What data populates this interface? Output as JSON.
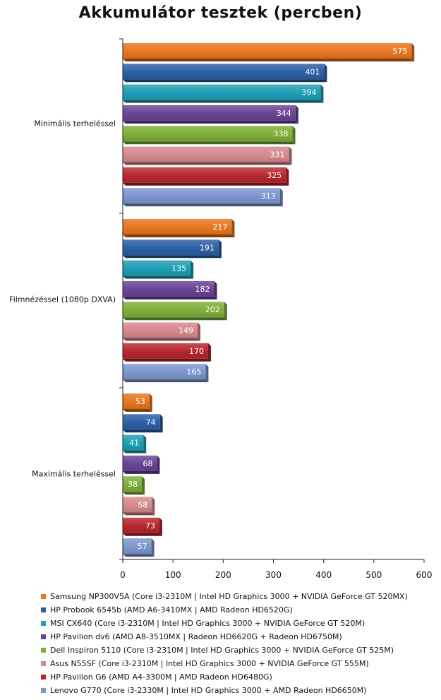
{
  "chart_data": {
    "type": "bar",
    "orientation": "horizontal",
    "title": "Akkumulátor tesztek (percben)",
    "categories": [
      "Minimális terheléssel",
      "Filmnézéssel (1080p DXVA)",
      "Maximális terheléssel"
    ],
    "xlim": [
      0,
      600
    ],
    "xticks": [
      0,
      100,
      200,
      300,
      400,
      500,
      600
    ],
    "grid": false,
    "legend_position": "bottom",
    "series": [
      {
        "name": "Samsung NP300V5A (Core i3-2310M | Intel HD Graphics 3000 + NVIDIA GeForce GT 520MX)",
        "color": "#e8761f",
        "values": [
          575,
          217,
          53
        ]
      },
      {
        "name": "HP Probook 6545b (AMD A6-3410MX | AMD Radeon HD6520G)",
        "color": "#2d5fa6",
        "values": [
          401,
          191,
          74
        ]
      },
      {
        "name": "MSI CX640 (Core i3-2310M | Intel HD Graphics 3000 + NVIDIA GeForce GT 520M)",
        "color": "#1e9fb5",
        "values": [
          394,
          135,
          41
        ]
      },
      {
        "name": "HP Pavilion dv6 (AMD A8-3510MX | Radeon HD6620G + Radeon HD6750M)",
        "color": "#6a4496",
        "values": [
          344,
          182,
          68
        ]
      },
      {
        "name": "Dell Inspiron 5110 (Core i3-2310M | Intel HD Graphics 3000 + NVIDIA GeForce GT 525M)",
        "color": "#7fae3a",
        "values": [
          338,
          202,
          38
        ]
      },
      {
        "name": "Asus N55SF (Core i3-2310M | Intel HD Graphics 3000 + NVIDIA GeForce GT 555M)",
        "color": "#d7898d",
        "values": [
          331,
          149,
          58
        ]
      },
      {
        "name": "HP Pavilion G6 (AMD A4-3300M | AMD Radeon HD6480G)",
        "color": "#b8262d",
        "values": [
          325,
          170,
          73
        ]
      },
      {
        "name": "Lenovo G770 (Core i3-2330M | Intel HD Graphics 3000 + AMD Radeon HD6650M)",
        "color": "#7d97cf",
        "values": [
          313,
          165,
          57
        ]
      }
    ]
  }
}
